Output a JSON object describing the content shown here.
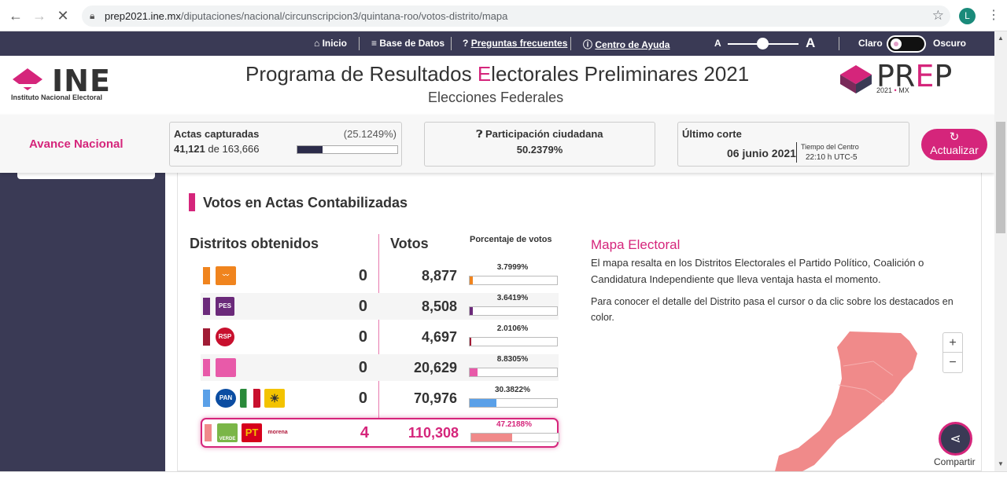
{
  "browser": {
    "url_host": "prep2021.ine.mx",
    "url_path": "/diputaciones/nacional/circunscripcion3/quintana-roo/votos-distrito/mapa",
    "profile_initial": "L"
  },
  "topnav": {
    "inicio": "Inicio",
    "base_datos": "Base de Datos",
    "preguntas": "Preguntas frecuentes",
    "ayuda": "Centro de Ayuda",
    "font_small": "A",
    "font_large": "A",
    "claro": "Claro",
    "oscuro": "Oscuro"
  },
  "header": {
    "ine_word": "INE",
    "ine_sub": "Instituto Nacional Electoral",
    "title_pre": "Programa de Resultados ",
    "title_e": "E",
    "title_post": "lectorales Preliminares 2021",
    "subtitle": "Elecciones Federales",
    "prep_pr": "PR",
    "prep_e": "E",
    "prep_p": "P",
    "prep_year": "2021",
    "prep_mx": "MX"
  },
  "stats": {
    "avance": "Avance Nacional",
    "actas_label": "Actas capturadas",
    "actas_pct": "(25.1249%)",
    "actas_count": "41,121",
    "actas_de": "de",
    "actas_total": "163,666",
    "actas_fraction": 0.251249,
    "part_label": "Participación ciudadana",
    "part_value": "50.2379%",
    "corte_label": "Último corte",
    "corte_date": "06 junio 2021",
    "corte_tz": "Tiempo del Centro",
    "corte_time": "22:10 h UTC-5",
    "refresh": "Actualizar"
  },
  "section": {
    "title": "Votos en Actas Contabilizadas",
    "h_distritos": "Distritos obtenidos",
    "h_votos": "Votos",
    "h_pct": "Porcentaje de votos"
  },
  "rows": [
    {
      "color": "#f0841e",
      "districts": "0",
      "votes": "8,877",
      "pct": "3.7999%",
      "fraction": 0.037999
    },
    {
      "color": "#6b2a7a",
      "districts": "0",
      "votes": "8,508",
      "pct": "3.6419%",
      "fraction": 0.036419
    },
    {
      "color": "#a01c35",
      "districts": "0",
      "votes": "4,697",
      "pct": "2.0106%",
      "fraction": 0.020106
    },
    {
      "color": "#e85aa9",
      "districts": "0",
      "votes": "20,629",
      "pct": "8.8305%",
      "fraction": 0.088305
    },
    {
      "color": "#5aa0e8",
      "districts": "0",
      "votes": "70,976",
      "pct": "30.3822%",
      "fraction": 0.303822
    },
    {
      "color": "#f08a8a",
      "districts": "4",
      "votes": "110,308",
      "pct": "47.2188%",
      "fraction": 0.472188
    }
  ],
  "logos": {
    "pes": "PES",
    "rsp": "RSP",
    "pan": "PAN",
    "verde": "VERDE",
    "pt": "PT",
    "morena": "morena"
  },
  "map": {
    "title": "Mapa Electoral",
    "p1": "El mapa resalta en los Distritos Electorales el Partido Político, Coalición o Candidatura Independiente que lleva ventaja hasta el momento.",
    "p2": "Para conocer el detalle del Distrito pasa el cursor o da clic sobre los destacados en color.",
    "zoom_in": "+",
    "zoom_out": "−",
    "share_label": "Compartir",
    "fill_color": "#f08a8a"
  }
}
